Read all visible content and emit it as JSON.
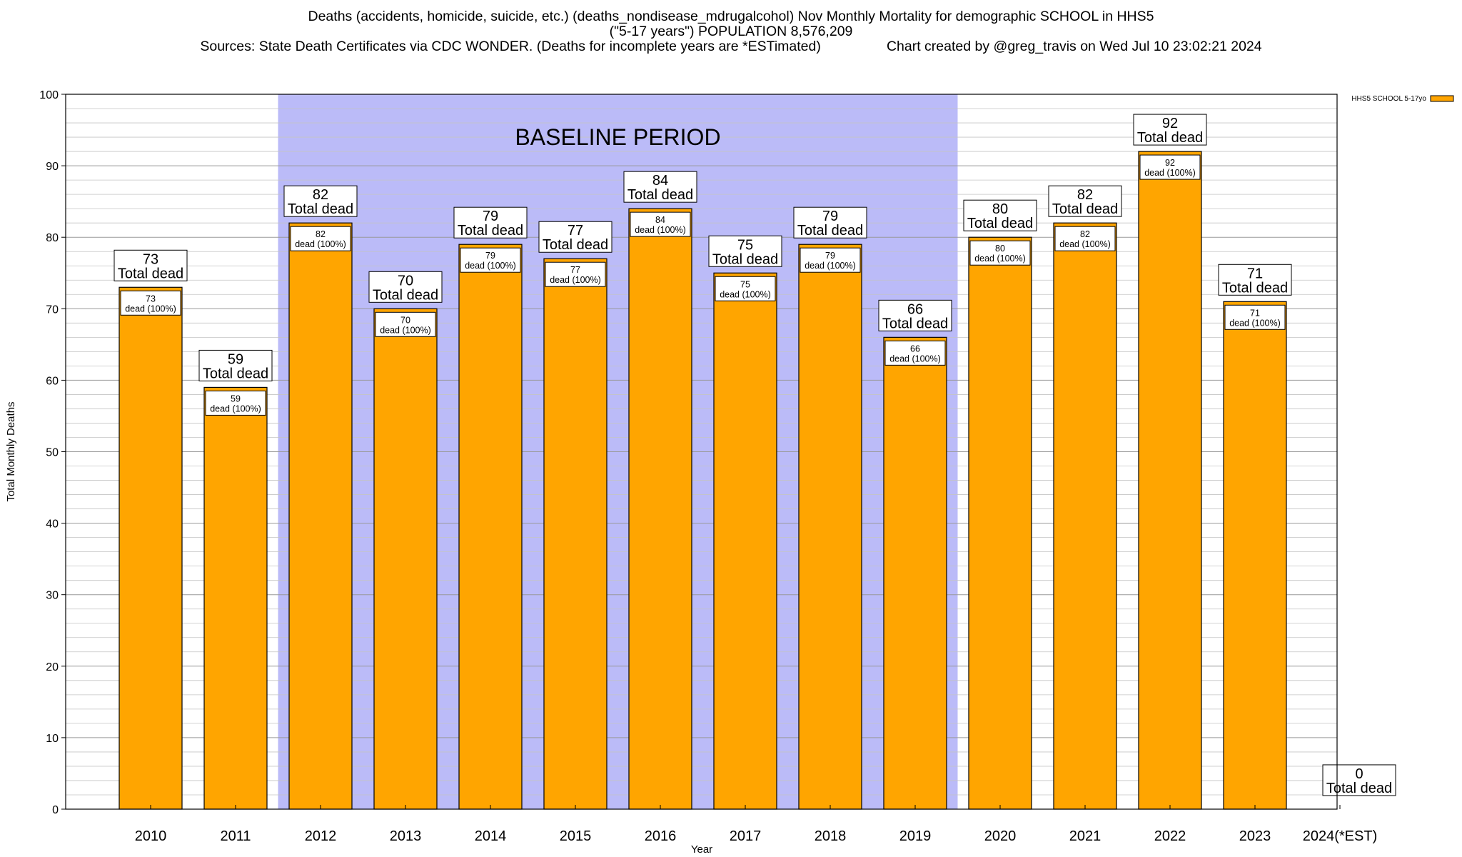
{
  "chart_data": {
    "type": "bar",
    "title_lines": [
      "Deaths (accidents, homicide, suicide, etc.) (deaths_nondisease_mdrugalcohol) Nov Monthly Mortality for demographic SCHOOL in HHS5",
      "(\"5-17 years\") POPULATION 8,576,209",
      "Sources: State Death Certificates via CDC WONDER. (Deaths for incomplete years are *ESTimated)                 Chart created by @greg_travis on Wed Jul 10 23:02:21 2024"
    ],
    "xlabel": "Year",
    "ylabel": "Total Monthly Deaths",
    "ylim": [
      0,
      100
    ],
    "yticks": [
      0,
      10,
      20,
      30,
      40,
      50,
      60,
      70,
      80,
      90,
      100
    ],
    "minor_grid_step": 2,
    "grid": true,
    "categories": [
      "2010",
      "2011",
      "2012",
      "2013",
      "2014",
      "2015",
      "2016",
      "2017",
      "2018",
      "2019",
      "2020",
      "2021",
      "2022",
      "2023",
      "2024(*EST)"
    ],
    "series": [
      {
        "name": "HHS5 SCHOOL 5-17yo",
        "color": "#ffa500",
        "values": [
          73,
          59,
          82,
          70,
          79,
          77,
          84,
          75,
          79,
          66,
          80,
          82,
          92,
          71,
          0
        ]
      }
    ],
    "total_label_text": "Total dead",
    "inner_label_text": "dead (100%)",
    "baseline": {
      "label": "BASELINE PERIOD",
      "from": "2012",
      "to": "2019",
      "color": "#bbbbf8"
    },
    "legend_position": "top-right"
  }
}
